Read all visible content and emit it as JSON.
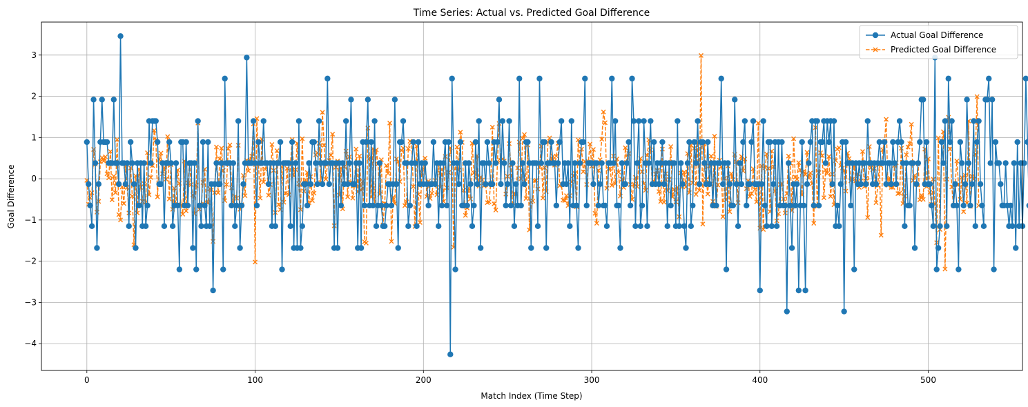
{
  "chart_data": {
    "type": "line",
    "title": "Time Series: Actual vs. Predicted Goal Difference",
    "xlabel": "Match Index (Time Step)",
    "ylabel": "Goal Difference",
    "xlim": [
      -27,
      556
    ],
    "ylim": [
      -4.65,
      3.8
    ],
    "xticks": [
      0,
      100,
      200,
      300,
      400,
      500
    ],
    "yticks": [
      -4,
      -3,
      -2,
      -1,
      0,
      1,
      2,
      3
    ],
    "ytick_labels": [
      "−4",
      "−3",
      "−2",
      "−1",
      "0",
      "1",
      "2",
      "3"
    ],
    "grid": true,
    "legend_position": "top-right",
    "colors": {
      "actual": "#1f77b4",
      "predicted": "#ff7f0e"
    },
    "series": [
      {
        "name": "Actual Goal Difference",
        "style": "solid-circle",
        "x_start": 0,
        "values": [
          0.89,
          -0.13,
          -0.65,
          -1.15,
          1.92,
          0.38,
          -1.68,
          -0.13,
          0.89,
          1.92,
          0.89,
          0.89,
          0.89,
          0.38,
          0.38,
          0.38,
          1.92,
          0.38,
          0.38,
          -0.13,
          3.46,
          0.38,
          0.38,
          -0.13,
          0.38,
          -1.15,
          0.89,
          0.38,
          -0.13,
          -1.68,
          0.38,
          -0.65,
          0.38,
          -1.15,
          0.38,
          -1.15,
          -0.65,
          1.4,
          0.38,
          1.4,
          1.4,
          1.4,
          0.89,
          -0.13,
          -0.13,
          0.38,
          -1.15,
          0.38,
          0.38,
          0.89,
          0.38,
          -1.15,
          -0.65,
          0.38,
          -0.65,
          -2.2,
          0.89,
          0.89,
          -0.65,
          0.89,
          -0.65,
          0.38,
          0.38,
          -1.68,
          0.38,
          -2.2,
          1.4,
          -0.65,
          -1.15,
          0.89,
          -0.65,
          -1.15,
          0.89,
          -1.15,
          -0.13,
          -2.71,
          -0.13,
          0.38,
          -0.13,
          -0.13,
          0.38,
          -2.2,
          2.43,
          0.38,
          0.38,
          0.38,
          -0.65,
          0.38,
          -1.15,
          -0.65,
          1.4,
          -1.68,
          -0.65,
          -0.13,
          0.38,
          2.94,
          0.38,
          0.38,
          0.38,
          1.4,
          0.38,
          -0.65,
          0.89,
          0.38,
          0.38,
          1.4,
          0.38,
          0.38,
          -0.13,
          0.38,
          -1.15,
          0.38,
          -1.15,
          0.38,
          0.38,
          0.89,
          -2.2,
          0.38,
          0.38,
          0.38,
          0.38,
          -1.15,
          0.89,
          -1.68,
          0.38,
          -1.68,
          1.4,
          -1.68,
          -1.15,
          -0.13,
          -0.13,
          -0.65,
          0.38,
          -0.13,
          0.89,
          0.89,
          0.38,
          -0.13,
          1.4,
          0.38,
          -0.13,
          0.38,
          0.38,
          2.43,
          -0.13,
          0.38,
          0.38,
          -1.68,
          0.38,
          -1.68,
          0.38,
          -0.65,
          0.38,
          -0.13,
          1.4,
          -0.13,
          0.38,
          1.92,
          -0.13,
          -0.13,
          0.38,
          -1.68,
          0.38,
          -1.68,
          0.89,
          -0.65,
          0.89,
          1.92,
          -0.65,
          0.89,
          -0.65,
          1.4,
          -1.15,
          -0.65,
          0.38,
          -0.65,
          -1.15,
          -1.15,
          -0.65,
          -0.13,
          -0.13,
          -0.65,
          -0.13,
          1.92,
          -0.13,
          -1.68,
          0.89,
          0.89,
          1.4,
          0.38,
          0.38,
          -1.15,
          -0.65,
          0.38,
          0.89,
          0.38,
          -1.15,
          0.89,
          -0.13,
          0.38,
          -0.13,
          0.38,
          -0.13,
          -0.65,
          -0.13,
          -0.13,
          0.89,
          -0.13,
          0.38,
          -1.15,
          0.38,
          -0.65,
          0.38,
          0.89,
          -0.65,
          0.89,
          -4.26,
          2.43,
          0.38,
          -2.2,
          0.38,
          -0.13,
          0.89,
          -0.65,
          -0.65,
          0.38,
          -0.65,
          0.38,
          -0.13,
          -1.15,
          -0.65,
          0.89,
          -0.13,
          1.4,
          -1.68,
          0.38,
          0.38,
          -0.13,
          0.89,
          0.38,
          -0.13,
          -0.13,
          0.89,
          0.38,
          0.89,
          1.92,
          -0.13,
          1.4,
          0.38,
          -0.65,
          -0.13,
          1.4,
          -0.65,
          0.38,
          -1.15,
          -0.13,
          -0.65,
          2.43,
          -0.65,
          0.38,
          -0.13,
          0.89,
          0.89,
          0.38,
          -1.68,
          0.38,
          0.38,
          0.38,
          -1.15,
          2.43,
          0.38,
          0.89,
          0.89,
          -1.68,
          0.38,
          0.38,
          0.89,
          0.38,
          0.38,
          -0.65,
          0.38,
          0.89,
          1.4,
          -0.13,
          0.38,
          -0.13,
          0.38,
          -1.15,
          1.4,
          -0.65,
          0.38,
          -0.65,
          -1.68,
          0.38,
          0.89,
          0.89,
          2.43,
          -0.65,
          0.38,
          0.38,
          0.38,
          -0.13,
          0.38,
          0.38,
          -0.65,
          -0.13,
          0.38,
          -0.65,
          -0.65,
          -1.15,
          0.38,
          0.38,
          2.43,
          0.38,
          1.4,
          -0.65,
          -0.65,
          -1.68,
          0.38,
          -0.13,
          -0.13,
          0.38,
          0.89,
          -0.65,
          2.43,
          1.4,
          -1.15,
          0.38,
          1.4,
          -1.15,
          -0.65,
          1.4,
          0.38,
          -1.15,
          0.38,
          1.4,
          -0.13,
          0.89,
          -0.13,
          0.38,
          -0.13,
          0.38,
          0.89,
          -0.13,
          0.38,
          -1.15,
          0.38,
          -0.65,
          0.38,
          0.38,
          -1.15,
          1.4,
          -1.15,
          0.38,
          -0.13,
          -1.15,
          -1.68,
          0.38,
          0.89,
          -1.15,
          -0.65,
          0.89,
          0.38,
          1.4,
          -0.13,
          0.89,
          0.89,
          0.38,
          -0.13,
          0.89,
          -0.13,
          0.38,
          -0.65,
          0.38,
          -0.65,
          0.38,
          0.38,
          2.43,
          -0.13,
          0.38,
          -2.2,
          0.38,
          -0.13,
          -0.65,
          -0.65,
          1.92,
          -0.13,
          -1.15,
          0.38,
          -0.13,
          0.89,
          1.4,
          -0.65,
          -0.13,
          -0.13,
          0.89,
          1.4,
          -0.13,
          -0.13,
          -0.13,
          -2.71,
          -0.13,
          1.4,
          -0.65,
          -1.15,
          0.89,
          0.89,
          -1.15,
          -0.13,
          0.89,
          -1.15,
          0.89,
          -0.65,
          0.89,
          -0.65,
          -0.65,
          -3.22,
          0.38,
          -0.65,
          -1.68,
          -0.13,
          -0.65,
          -0.13,
          -2.71,
          -0.65,
          0.89,
          -0.65,
          -2.71,
          -0.13,
          0.38,
          0.89,
          1.4,
          -0.65,
          1.4,
          1.4,
          -0.65,
          0.89,
          0.89,
          1.4,
          0.38,
          1.4,
          0.89,
          1.4,
          -0.13,
          1.4,
          -1.15,
          -0.65,
          -1.15,
          -0.13,
          0.89,
          -3.22,
          0.89,
          0.38,
          0.38,
          -0.65,
          0.38,
          -2.2,
          0.38,
          -0.13,
          0.38,
          -0.13,
          0.38,
          0.38,
          -0.13,
          1.4,
          0.38,
          0.38,
          -0.13,
          0.38,
          -0.13,
          0.38,
          0.89,
          0.38,
          0.38,
          0.89,
          -0.13,
          0.38,
          0.38,
          -0.13,
          0.89,
          0.38,
          -0.13,
          0.89,
          1.4,
          0.89,
          0.38,
          -1.15,
          0.38,
          -0.65,
          -0.65,
          0.38,
          0.38,
          -1.68,
          -0.13,
          0.38,
          0.89,
          1.92,
          1.92,
          -0.13,
          0.89,
          -0.13,
          -0.13,
          -0.65,
          -1.15,
          2.94,
          -2.2,
          -1.68,
          -1.15,
          0.89,
          0.38,
          1.4,
          -1.15,
          2.43,
          0.89,
          1.4,
          -0.65,
          -0.13,
          -0.65,
          -2.2,
          0.89,
          0.38,
          -0.65,
          -0.13,
          1.92,
          0.38,
          -0.65,
          -0.13,
          1.4,
          -1.15,
          0.89,
          1.4,
          -0.13,
          -0.65,
          -1.15,
          1.92,
          1.92,
          2.43,
          0.38,
          1.92,
          -2.2,
          0.89,
          0.38,
          0.38,
          -0.13,
          -0.65,
          -0.65,
          0.38,
          -0.65,
          -1.15,
          -0.65,
          -1.15,
          0.38,
          -1.68,
          0.89,
          -1.15,
          0.38,
          -1.15,
          0.38,
          2.43,
          0.89,
          -0.65
        ]
      },
      {
        "name": "Predicted Goal Difference",
        "style": "dashed-x",
        "x_start": 0,
        "values": [
          -0.04,
          -0.62,
          -0.46,
          -0.34,
          0.71,
          0.35,
          -0.81,
          -0.55,
          0.41,
          0.51,
          0.43,
          0.53,
          0.12,
          0.02,
          0.66,
          -0.51,
          0.06,
          -0.34,
          0.95,
          -0.87,
          -1.0,
          -0.2,
          -0.6,
          0.3,
          -0.21,
          -0.83,
          0.26,
          -0.42,
          -1.6,
          0.07,
          -0.83,
          0.23,
          -0.21,
          -0.55,
          -0.12,
          -0.57,
          0.63,
          -0.39,
          0.03,
          0.32,
          1.17,
          0.94,
          -0.44,
          0.47,
          0.62,
          0.12,
          0.27,
          -0.01,
          1.02,
          -0.49,
          0.34,
          -0.74,
          -0.23,
          -0.66,
          0.21,
          -0.11,
          -0.63,
          -0.86,
          0.43,
          -0.78,
          -0.1,
          0.36,
          -0.14,
          -0.39,
          -0.85,
          -0.16,
          1.35,
          -0.74,
          -0.62,
          -0.09,
          0.23,
          -0.57,
          -0.58,
          -0.24,
          -0.27,
          -1.52,
          -0.34,
          0.77,
          -0.34,
          0.48,
          0.74,
          0.2,
          -0.53,
          -0.14,
          0.73,
          0.82,
          -0.22,
          -0.57,
          -0.43,
          -0.47,
          0.81,
          -0.74,
          -0.63,
          0.08,
          -0.41,
          0.45,
          0.19,
          0.46,
          0.55,
          1.33,
          -2.02,
          1.46,
          0.36,
          -0.47,
          0.96,
          -0.08,
          0.23,
          0.38,
          -0.4,
          -0.14,
          0.83,
          0.2,
          -0.82,
          0.68,
          -0.63,
          -0.75,
          0.29,
          -0.57,
          -0.35,
          0.25,
          -0.39,
          0.37,
          0.95,
          0.07,
          0.22,
          0.86,
          -0.12,
          -0.75,
          0.97,
          -0.3,
          -0.03,
          0.15,
          -0.58,
          0.05,
          -0.53,
          -0.35,
          0.58,
          0.63,
          0.86,
          -0.09,
          1.61,
          0.81,
          -0.01,
          0.35,
          0.44,
          0.57,
          1.08,
          -1.14,
          0.28,
          0.43,
          -0.4,
          0.26,
          -0.73,
          0.29,
          0.67,
          -0.44,
          0.53,
          -0.09,
          -0.47,
          -0.17,
          0.72,
          -0.32,
          0.55,
          -0.28,
          -0.06,
          -1.53,
          -1.56,
          1.23,
          0.51,
          -0.44,
          0.73,
          -0.66,
          0.7,
          0.36,
          -0.38,
          0.46,
          -1.12,
          -0.6,
          0.32,
          0.13,
          1.35,
          -1.52,
          -0.45,
          -0.6,
          0.48,
          0.41,
          -0.07,
          0.69,
          0.74,
          -0.65,
          -0.56,
          0.73,
          0.91,
          0.88,
          -0.19,
          -1.16,
          0.79,
          -0.38,
          -1.06,
          0.15,
          0.25,
          0.5,
          -0.43,
          -0.06,
          -0.48,
          -0.35,
          -0.09,
          -0.04,
          -0.39,
          0.37,
          -0.21,
          0.23,
          -0.55,
          0.54,
          -0.22,
          0.15,
          0.75,
          0.37,
          -1.66,
          0.24,
          0.77,
          0.21,
          1.13,
          0.88,
          -0.28,
          -0.89,
          -0.71,
          -0.23,
          -0.49,
          0.86,
          0.14,
          0.01,
          0.56,
          -0.18,
          0.04,
          -0.03,
          -0.17,
          -0.15,
          -0.58,
          -0.56,
          -0.11,
          1.25,
          -0.61,
          -0.76,
          0.42,
          1.34,
          0.45,
          0.48,
          0.43,
          -0.37,
          0.06,
          0.85,
          0.33,
          -0.66,
          -0.36,
          -0.37,
          0.26,
          0.89,
          -0.0,
          0.98,
          1.07,
          -0.48,
          0.82,
          -1.24,
          -0.56,
          -0.54,
          -0.05,
          -0.04,
          -0.25,
          0.28,
          0.79,
          -0.47,
          0.27,
          -0.31,
          0.89,
          0.99,
          0.43,
          0.54,
          0.33,
          0.55,
          0.86,
          -0.17,
          -0.13,
          -0.52,
          -0.53,
          -0.41,
          -0.65,
          -0.41,
          -0.08,
          0.07,
          0.13,
          -0.68,
          0.94,
          0.37,
          0.72,
          0.17,
          0.42,
          -0.14,
          0.41,
          0.84,
          0.3,
          0.71,
          -0.84,
          -1.08,
          0.2,
          0.46,
          0.96,
          1.62,
          1.36,
          -0.23,
          0.24,
          0.24,
          -0.16,
          0.55,
          -0.12,
          0.48,
          0.16,
          -0.42,
          -0.01,
          -0.21,
          0.75,
          0.38,
          0.61,
          -0.14,
          -0.5,
          -0.13,
          0.03,
          -0.19,
          0.35,
          0.49,
          0.17,
          -0.12,
          -0.28,
          0.57,
          0.94,
          0.7,
          -0.14,
          -0.06,
          0.11,
          0.2,
          -0.31,
          -0.55,
          0.72,
          -0.57,
          0.12,
          -0.29,
          -0.02,
          0.78,
          -0.44,
          -0.26,
          -0.56,
          -0.21,
          -0.92,
          0.14,
          -0.19,
          0.16,
          -0.2,
          0.61,
          -0.34,
          0.81,
          -0.1,
          0.74,
          -0.38,
          0.89,
          -0.28,
          2.99,
          -1.1,
          0.84,
          -0.02,
          -0.37,
          0.31,
          0.55,
          -0.55,
          1.03,
          -0.67,
          -0.15,
          0.45,
          0.29,
          -0.92,
          0.01,
          -0.51,
          0.31,
          -0.8,
          0.12,
          -0.02,
          0.59,
          0.41,
          -0.58,
          0.36,
          0.54,
          0.19,
          0.48,
          -0.24,
          -0.05,
          -0.43,
          -0.36,
          0.24,
          -0.26,
          -0.56,
          1.35,
          -1.2,
          0.31,
          -1.23,
          0.27,
          0.6,
          0.25,
          -0.8,
          0.67,
          0.29,
          -0.3,
          -1.02,
          -0.85,
          -0.14,
          -0.12,
          -0.49,
          -0.83,
          -0.36,
          0.55,
          0.38,
          -0.77,
          0.97,
          0.04,
          -0.01,
          0.39,
          0.21,
          -0.39,
          0.18,
          0.1,
          0.64,
          0.02,
          0.14,
          -0.12,
          -1.08,
          1.24,
          -0.67,
          0.15,
          0.63,
          0.56,
          -0.46,
          0.21,
          0.13,
          0.54,
          -0.43,
          0.11,
          -0.63,
          0.44,
          0.72,
          0.75,
          0.32,
          0.26,
          0.19,
          -0.3,
          0.62,
          0.49,
          -0.05,
          -0.01,
          0.31,
          -0.05,
          0.12,
          -0.21,
          -0.06,
          0.66,
          -0.19,
          0.01,
          -0.94,
          0.78,
          0.27,
          0.22,
          0.25,
          -0.58,
          -0.16,
          0.34,
          -1.37,
          0.7,
          0.9,
          1.44,
          -0.16,
          0.02,
          -0.21,
          -0.21,
          0.32,
          0.39,
          -0.36,
          -0.35,
          0.74,
          -0.6,
          -0.42,
          0.58,
          0.77,
          0.85,
          1.32,
          -0.04,
          0.08,
          -0.14,
          0.36,
          -0.51,
          -0.4,
          -0.5,
          0.72,
          -0.19,
          0.48,
          -0.33,
          -0.62,
          -0.01,
          -0.62,
          -1.55,
          0.99,
          -1.23,
          0.92,
          1.14,
          -2.19,
          -0.01,
          1.49,
          0.72,
          -0.2,
          -0.65,
          -0.12,
          0.43,
          -0.14,
          -0.5,
          0.03,
          -0.8,
          0.08,
          -0.59,
          1.4,
          -0.67,
          0.06,
          -0.01,
          0.6,
          1.99,
          -0.65
        ]
      }
    ]
  }
}
